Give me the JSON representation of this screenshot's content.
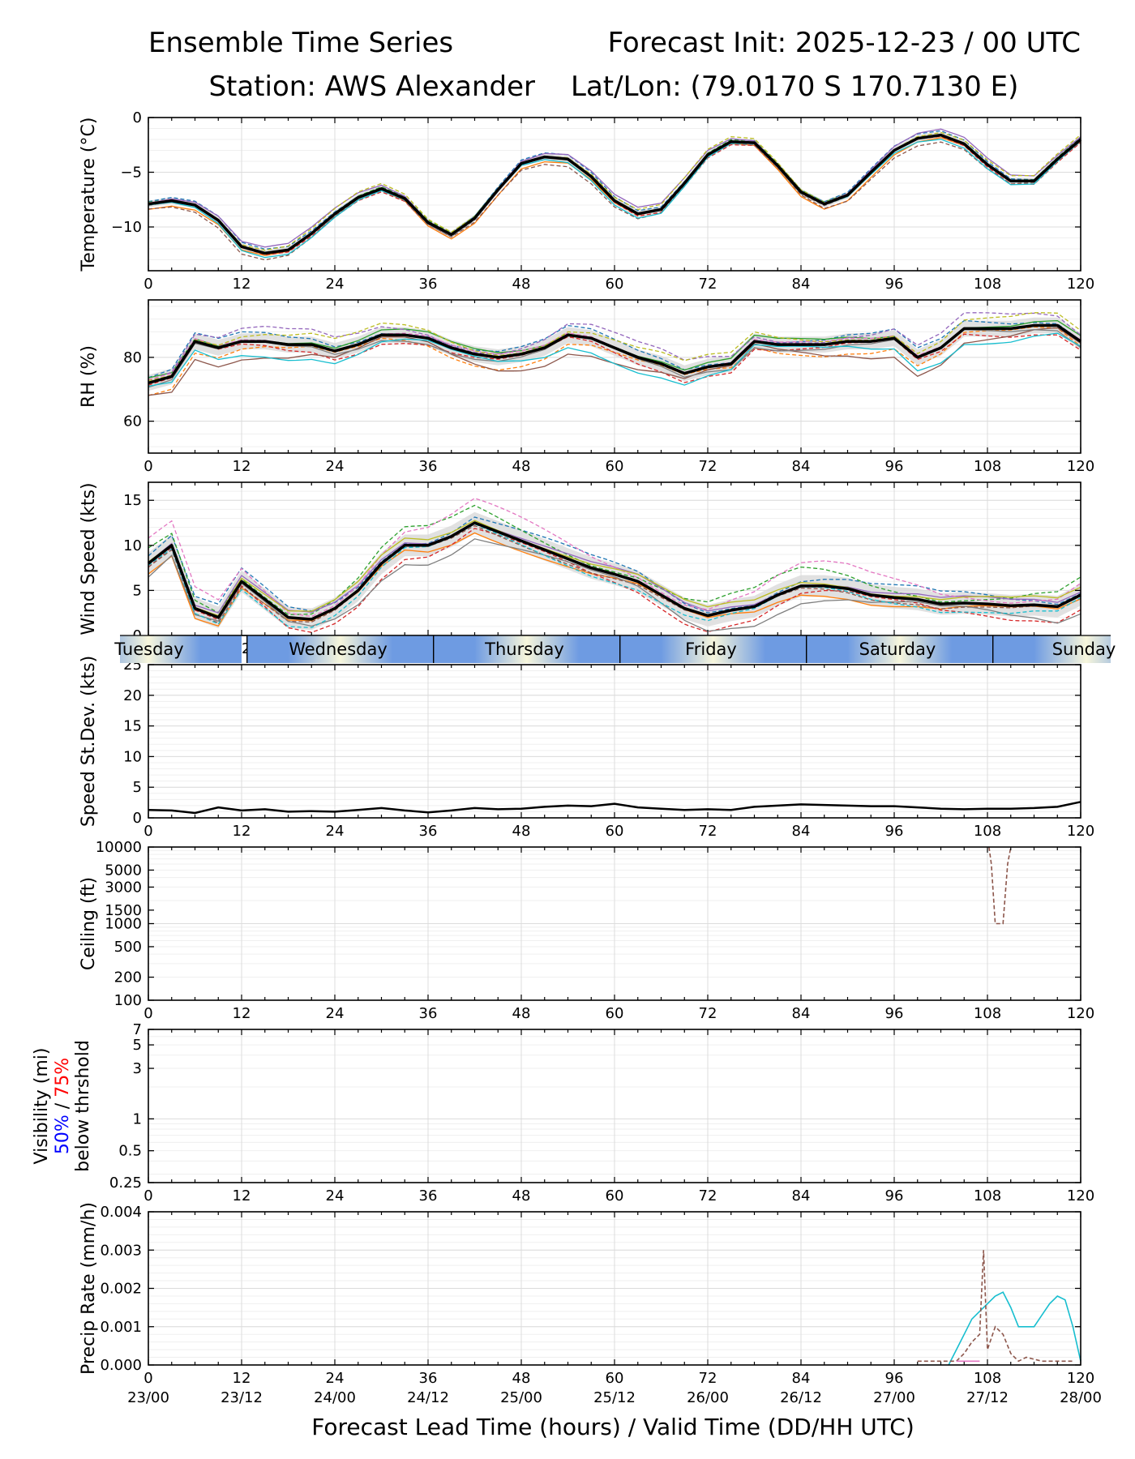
{
  "header": {
    "title_left": "Ensemble Time Series",
    "title_right": "Forecast Init: 2025-12-23 / 00 UTC",
    "station": "Station: AWS Alexander",
    "latlon": "Lat/Lon: (79.0170 S 170.7130 E)"
  },
  "x_axis": {
    "label": "Forecast Lead Time (hours) / Valid Time (DD/HH UTC)",
    "range": [
      0,
      120
    ],
    "ticks": [
      0,
      12,
      24,
      36,
      48,
      60,
      72,
      84,
      96,
      108,
      120
    ],
    "tick_labels": [
      "0",
      "12",
      "24",
      "36",
      "48",
      "60",
      "72",
      "84",
      "96",
      "108",
      "120"
    ],
    "valid_time_labels": [
      "23/00",
      "23/12",
      "24/00",
      "24/12",
      "25/00",
      "25/12",
      "26/00",
      "26/12",
      "27/00",
      "27/12",
      "28/00"
    ]
  },
  "day_strip": {
    "days": [
      "Tuesday",
      "Wednesday",
      "Thursday",
      "Friday",
      "Saturday",
      "Sunday"
    ],
    "day_start_hours": [
      -12,
      12.7,
      36.7,
      60.7,
      84.7,
      108.7
    ],
    "color_day": "#f7f6dc",
    "color_night": "#6e9be2"
  },
  "colors": {
    "mean": "#000000",
    "spread": "#d9d9d9",
    "vis_50": "#0000ff",
    "vis_75": "#ff0000",
    "members": [
      "#1f77b4",
      "#ff7f0e",
      "#2ca02c",
      "#d62728",
      "#9467bd",
      "#8c564b",
      "#e377c2",
      "#7f7f7f",
      "#bcbd22",
      "#17becf"
    ]
  },
  "chart_data": [
    {
      "id": "temperature",
      "type": "line",
      "ylabel": "Temperature (°C)",
      "ylim": [
        -14,
        0
      ],
      "yticks": [
        0,
        -5,
        -10
      ],
      "ytick_labels": [
        "0",
        "−5",
        "−10"
      ],
      "mean_series": {
        "name": "ensemble mean",
        "x": [
          0,
          3,
          6,
          9,
          12,
          15,
          18,
          21,
          24,
          27,
          30,
          33,
          36,
          39,
          42,
          45,
          48,
          51,
          54,
          57,
          60,
          63,
          66,
          69,
          72,
          75,
          78,
          81,
          84,
          87,
          90,
          93,
          96,
          99,
          102,
          105,
          108,
          111,
          114,
          117,
          120
        ],
        "y": [
          -7.9,
          -7.6,
          -8.0,
          -9.4,
          -11.8,
          -12.4,
          -12.1,
          -10.6,
          -8.8,
          -7.3,
          -6.5,
          -7.4,
          -9.6,
          -10.7,
          -9.2,
          -6.6,
          -4.2,
          -3.6,
          -3.8,
          -5.4,
          -7.6,
          -8.8,
          -8.4,
          -6.0,
          -3.4,
          -2.2,
          -2.3,
          -4.4,
          -6.8,
          -7.9,
          -7.1,
          -5.0,
          -3.0,
          -1.9,
          -1.6,
          -2.4,
          -4.3,
          -5.8,
          -5.8,
          -3.8,
          -2.0
        ]
      },
      "spread_halfwidth": 0.3,
      "members": [
        {
          "offset": 0.4,
          "style": "dashed"
        },
        {
          "offset": -0.5,
          "style": "solid"
        },
        {
          "offset": 0.2,
          "style": "dashed"
        },
        {
          "offset": -0.3,
          "style": "dashed"
        },
        {
          "offset": 0.6,
          "style": "solid"
        },
        {
          "offset": -0.7,
          "style": "dashed"
        },
        {
          "offset": 0.1,
          "style": "solid"
        },
        {
          "offset": -0.2,
          "style": "dashed"
        },
        {
          "offset": 0.5,
          "style": "dashed"
        },
        {
          "offset": -0.4,
          "style": "solid"
        }
      ]
    },
    {
      "id": "rh",
      "type": "line",
      "ylabel": "RH (%)",
      "ylim": [
        50,
        98
      ],
      "yticks": [
        80,
        60
      ],
      "ytick_labels": [
        "80",
        "60"
      ],
      "mean_series": {
        "name": "ensemble mean",
        "x": [
          0,
          3,
          6,
          9,
          12,
          15,
          18,
          21,
          24,
          27,
          30,
          33,
          36,
          39,
          42,
          45,
          48,
          51,
          54,
          57,
          60,
          63,
          66,
          69,
          72,
          75,
          78,
          81,
          84,
          87,
          90,
          93,
          96,
          99,
          102,
          105,
          108,
          111,
          114,
          117,
          120
        ],
        "y": [
          72,
          74,
          85,
          83,
          85,
          85,
          84,
          84,
          82,
          84,
          87,
          87,
          86,
          83,
          81,
          80,
          81,
          83,
          87,
          86,
          83,
          80,
          78,
          75,
          77,
          78,
          85,
          84,
          84,
          84,
          85,
          85,
          86,
          80,
          83,
          89,
          89,
          89,
          90,
          90,
          85
        ]
      },
      "spread_halfwidth": 2.5,
      "members": [
        {
          "offset": 3,
          "style": "dashed"
        },
        {
          "offset": -4,
          "style": "dashed"
        },
        {
          "offset": 2,
          "style": "solid"
        },
        {
          "offset": -3,
          "style": "dashed"
        },
        {
          "offset": 5,
          "style": "dashed"
        },
        {
          "offset": -6,
          "style": "solid"
        },
        {
          "offset": 1,
          "style": "dashed"
        },
        {
          "offset": -2,
          "style": "solid"
        },
        {
          "offset": 4,
          "style": "dashed"
        },
        {
          "offset": -5,
          "style": "solid"
        }
      ]
    },
    {
      "id": "wind",
      "type": "line",
      "ylabel": "Wind Speed (kts)",
      "ylim": [
        0,
        17
      ],
      "yticks": [
        0,
        5,
        10,
        15
      ],
      "ytick_labels": [
        "0",
        "5",
        "10",
        "15"
      ],
      "mean_series": {
        "name": "ensemble mean",
        "x": [
          0,
          3,
          6,
          9,
          12,
          15,
          18,
          21,
          24,
          27,
          30,
          33,
          36,
          39,
          42,
          45,
          48,
          51,
          54,
          57,
          60,
          63,
          66,
          69,
          72,
          75,
          78,
          81,
          84,
          87,
          90,
          93,
          96,
          99,
          102,
          105,
          108,
          111,
          114,
          117,
          120
        ],
        "y": [
          8,
          10,
          3,
          2,
          6,
          4,
          2,
          1.8,
          3,
          5,
          8,
          10,
          10,
          11,
          12.5,
          11.5,
          10.5,
          9.5,
          8.5,
          7.5,
          6.8,
          6,
          4.5,
          3,
          2.2,
          2.8,
          3.2,
          4.5,
          5.5,
          5.5,
          5.2,
          4.5,
          4.2,
          4.0,
          3.5,
          3.6,
          3.5,
          3.3,
          3.4,
          3.2,
          4.5
        ]
      },
      "spread_halfwidth": 1.2,
      "members": [
        {
          "offset": 1.5,
          "style": "dashed"
        },
        {
          "offset": -1.2,
          "style": "solid"
        },
        {
          "offset": 2.2,
          "style": "dashed"
        },
        {
          "offset": -1.8,
          "style": "dashed"
        },
        {
          "offset": 0.8,
          "style": "solid"
        },
        {
          "offset": -0.6,
          "style": "dashed"
        },
        {
          "offset": 2.8,
          "style": "dashed"
        },
        {
          "offset": -2.2,
          "style": "solid"
        },
        {
          "offset": 1.0,
          "style": "solid"
        },
        {
          "offset": -1.0,
          "style": "dashed"
        }
      ]
    },
    {
      "id": "speed_sd",
      "type": "line",
      "ylabel": "Speed St.Dev. (kts)",
      "ylim": [
        0,
        25
      ],
      "yticks": [
        0,
        5,
        10,
        15,
        20,
        25
      ],
      "ytick_labels": [
        "0",
        "5",
        "10",
        "15",
        "20",
        "25"
      ],
      "mean_series": {
        "name": "speed st.dev.",
        "x": [
          0,
          3,
          6,
          9,
          12,
          15,
          18,
          21,
          24,
          27,
          30,
          33,
          36,
          39,
          42,
          45,
          48,
          51,
          54,
          57,
          60,
          63,
          66,
          69,
          72,
          75,
          78,
          81,
          84,
          87,
          90,
          93,
          96,
          99,
          102,
          105,
          108,
          111,
          114,
          117,
          120
        ],
        "y": [
          1.3,
          1.2,
          0.8,
          1.7,
          1.2,
          1.4,
          1.0,
          1.1,
          1.0,
          1.3,
          1.6,
          1.2,
          0.9,
          1.2,
          1.6,
          1.4,
          1.5,
          1.8,
          2.0,
          1.9,
          2.3,
          1.7,
          1.5,
          1.3,
          1.4,
          1.3,
          1.8,
          2.0,
          2.2,
          2.1,
          2.0,
          1.9,
          1.9,
          1.7,
          1.5,
          1.4,
          1.5,
          1.5,
          1.6,
          1.8,
          2.6
        ]
      }
    },
    {
      "id": "ceiling",
      "type": "line",
      "ylabel": "Ceiling (ft)",
      "scale": "log",
      "ylim": [
        100,
        10000
      ],
      "yticks": [
        100,
        200,
        500,
        1000,
        1500,
        3000,
        5000,
        10000
      ],
      "ytick_labels": [
        "100",
        "200",
        "500",
        "1000",
        "1500",
        "3000",
        "5000",
        "10000"
      ],
      "member_series": [
        {
          "name": "member",
          "color_index": 5,
          "style": "dashed",
          "x": [
            108.2,
            108.5,
            109.0,
            110.0,
            110.6,
            111.0
          ],
          "y": [
            10000,
            6000,
            1000,
            1000,
            6000,
            10000
          ]
        }
      ]
    },
    {
      "id": "visibility",
      "type": "line",
      "ylabel_parts": [
        "Visibility (mi)",
        "50%",
        "/",
        "75%",
        "below thrshold"
      ],
      "scale": "log",
      "ylim": [
        0.25,
        7
      ],
      "yticks": [
        0.25,
        0.5,
        1,
        3,
        5,
        7
      ],
      "ytick_labels": [
        "0.25",
        "0.5",
        "1",
        "3",
        "5",
        "7"
      ],
      "series": []
    },
    {
      "id": "precip",
      "type": "line",
      "ylabel": "Precip Rate (mm/h)",
      "ylim": [
        0,
        0.004
      ],
      "yticks": [
        0,
        0.001,
        0.002,
        0.003,
        0.004
      ],
      "ytick_labels": [
        "0.000",
        "0.001",
        "0.002",
        "0.003",
        "0.004"
      ],
      "member_series": [
        {
          "name": "member",
          "color_index": 9,
          "style": "solid",
          "x": [
            103,
            104,
            105,
            106,
            107,
            108,
            109,
            110,
            111,
            112,
            113,
            114,
            115,
            116,
            117,
            118,
            119,
            120
          ],
          "y": [
            0.0,
            0.0004,
            0.0008,
            0.0012,
            0.0014,
            0.0016,
            0.0018,
            0.0019,
            0.0015,
            0.001,
            0.001,
            0.001,
            0.0013,
            0.0016,
            0.0018,
            0.0017,
            0.001,
            0.0001
          ]
        },
        {
          "name": "member",
          "color_index": 5,
          "style": "dashed",
          "x": [
            99,
            101,
            103,
            104,
            105,
            106,
            107,
            107.5,
            108,
            108.5,
            109,
            110,
            111,
            112,
            113,
            115,
            117,
            119
          ],
          "y": [
            0.0001,
            0.0001,
            0.0001,
            0.0001,
            0.0003,
            0.0006,
            0.0008,
            0.003,
            0.0004,
            0.0007,
            0.001,
            0.0008,
            0.0003,
            0.0001,
            0.0002,
            0.0001,
            0.0001,
            0.0001
          ]
        },
        {
          "name": "member",
          "color_index": 6,
          "style": "solid",
          "x": [
            104,
            105,
            106,
            107
          ],
          "y": [
            0.0001,
            0.0001,
            0.0001,
            0.0001
          ]
        }
      ]
    }
  ]
}
